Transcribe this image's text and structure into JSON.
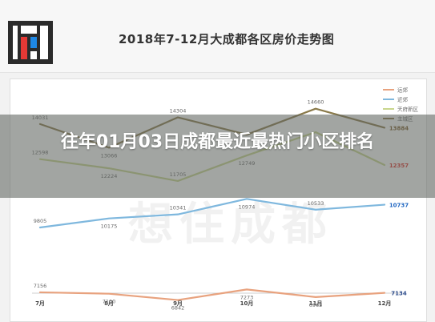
{
  "header": {
    "title": "2018年7-12月大成都各区房价走势图"
  },
  "banner": {
    "title": "往年01月03日成都最近最热门小区排名"
  },
  "watermark": "想住成都",
  "colors": {
    "远郊": "#e8a27e",
    "近郊": "#7fb8de",
    "天府新区": "#c9d68c",
    "主城区": "#8a7a4a",
    "accent_red": "#e0302a",
    "accent_blue": "#1f66c2",
    "accent_dark": "#7a5a28"
  },
  "chart_data": {
    "type": "line",
    "title": "2018年7-12月大成都各区房价走势图",
    "categories": [
      "7月",
      "8月",
      "9月",
      "10月",
      "11月",
      "12月"
    ],
    "legend_position": "top-right",
    "ylim": [
      6500,
      15500
    ],
    "series": [
      {
        "name": "远郊",
        "values": [
          7156,
          7100,
          6842,
          7273,
          6963,
          7134
        ],
        "labels": [
          "7156",
          "7100",
          "6842",
          "7273",
          "6963",
          "7134"
        ]
      },
      {
        "name": "近郊",
        "values": [
          9805,
          10175,
          10341,
          10974,
          10533,
          10737
        ],
        "labels": [
          "9805",
          "10175",
          "10341",
          "10974",
          "10533",
          "10737"
        ]
      },
      {
        "name": "天府新区",
        "values": [
          12598,
          12224,
          11705,
          12749,
          13700,
          12357
        ],
        "labels": [
          "12598",
          "12224",
          "11705",
          "12749",
          "",
          "12357"
        ]
      },
      {
        "name": "主城区",
        "values": [
          14031,
          13066,
          14304,
          13600,
          14660,
          13884
        ],
        "labels": [
          "14031",
          "13066",
          "14304",
          "",
          "14660",
          "13884"
        ]
      }
    ]
  }
}
